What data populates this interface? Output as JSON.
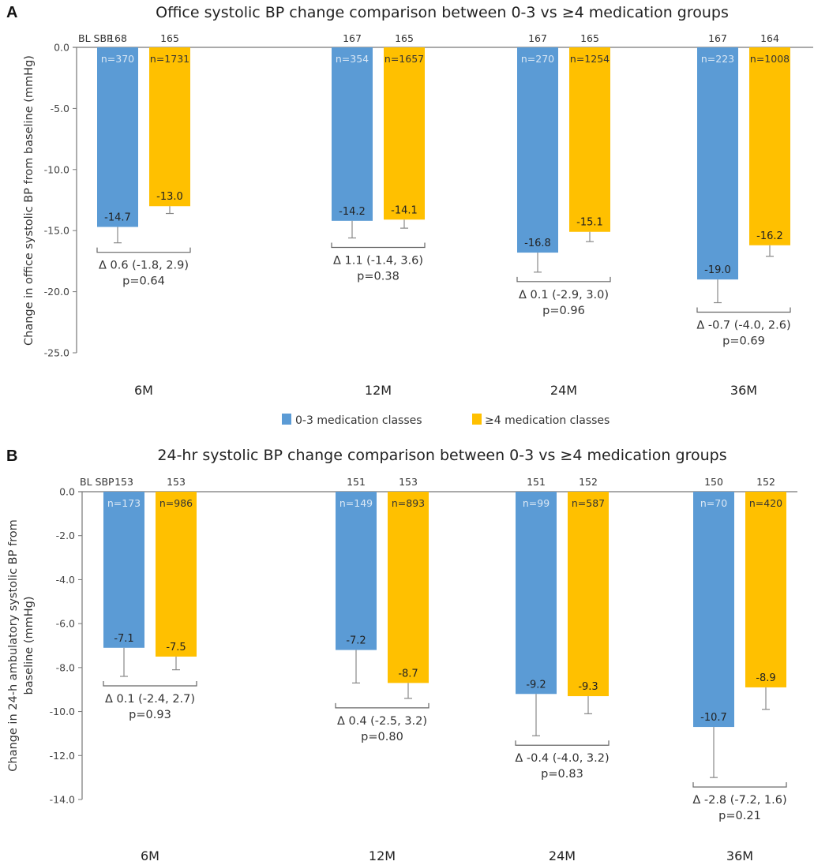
{
  "chart_data": [
    {
      "panel_letter": "A",
      "type": "bar",
      "title": "Office systolic BP change comparison between 0-3 vs ≥4 medication groups",
      "xlabel": "",
      "ylabel": "Change in office systolic BP from baseline (mmHg)",
      "ylim": [
        -25.0,
        0.0
      ],
      "yticks": [
        "0.0",
        "-5.0",
        "-10.0",
        "-15.0",
        "-20.0",
        "-25.0"
      ],
      "ytick_values": [
        0,
        -5,
        -10,
        -15,
        -20,
        -25
      ],
      "categories": [
        "6M",
        "12M",
        "24M",
        "36M"
      ],
      "baseline_label": "BL SBP",
      "series": [
        {
          "name": "0-3 medication classes",
          "color": "#5b9bd5",
          "values": [
            -14.7,
            -14.2,
            -16.8,
            -19.0
          ],
          "value_labels": [
            "-14.7",
            "-14.2",
            "-16.8",
            "-19.0"
          ],
          "error_lower": [
            -16.0,
            -15.6,
            -18.4,
            -20.9
          ],
          "n_labels": [
            "n=370",
            "n=354",
            "n=270",
            "n=223"
          ],
          "baseline_sbp": [
            "168",
            "167",
            "167",
            "167"
          ]
        },
        {
          "name": "≥4 medication classes",
          "color": "#ffc000",
          "values": [
            -13.0,
            -14.1,
            -15.1,
            -16.2
          ],
          "value_labels": [
            "-13.0",
            "-14.1",
            "-15.1",
            "-16.2"
          ],
          "error_lower": [
            -13.6,
            -14.8,
            -15.9,
            -17.1
          ],
          "n_labels": [
            "n=1731",
            "n=1657",
            "n=1254",
            "n=1008"
          ],
          "baseline_sbp": [
            "165",
            "165",
            "165",
            "164"
          ]
        }
      ],
      "comparisons": [
        {
          "delta": "Δ 0.6 (-1.8, 2.9)",
          "p": "p=0.64"
        },
        {
          "delta": "Δ 1.1 (-1.4, 3.6)",
          "p": "p=0.38"
        },
        {
          "delta": "Δ 0.1 (-2.9, 3.0)",
          "p": "p=0.96"
        },
        {
          "delta": "Δ -0.7 (-4.0, 2.6)",
          "p": "p=0.69"
        }
      ],
      "legend": {
        "placement": "bottom-center",
        "entries": [
          "0-3 medication classes",
          "≥4 medication classes"
        ]
      },
      "grid": false
    },
    {
      "panel_letter": "B",
      "type": "bar",
      "title": "24-hr systolic BP change comparison between 0-3 vs ≥4 medication groups",
      "xlabel": "",
      "ylabel": [
        "Change in 24-h ambulatory systolic BP from",
        "baseline (mmHg)"
      ],
      "ylim": [
        -14.0,
        0.0
      ],
      "yticks": [
        "0.0",
        "-2.0",
        "-4.0",
        "-6.0",
        "-8.0",
        "-10.0",
        "-12.0",
        "-14.0"
      ],
      "ytick_values": [
        0,
        -2,
        -4,
        -6,
        -8,
        -10,
        -12,
        -14
      ],
      "categories": [
        "6M",
        "12M",
        "24M",
        "36M"
      ],
      "baseline_label": "BL SBP",
      "series": [
        {
          "name": "0-3 medication classes",
          "color": "#5b9bd5",
          "values": [
            -7.1,
            -7.2,
            -9.2,
            -10.7
          ],
          "value_labels": [
            "-7.1",
            "-7.2",
            "-9.2",
            "-10.7"
          ],
          "error_lower": [
            -8.4,
            -8.7,
            -11.1,
            -13.0
          ],
          "n_labels": [
            "n=173",
            "n=149",
            "n=99",
            "n=70"
          ],
          "baseline_sbp": [
            "153",
            "151",
            "151",
            "150"
          ]
        },
        {
          "name": "≥4 medication classes",
          "color": "#ffc000",
          "values": [
            -7.5,
            -8.7,
            -9.3,
            -8.9
          ],
          "value_labels": [
            "-7.5",
            "-8.7",
            "-9.3",
            "-8.9"
          ],
          "error_lower": [
            -8.1,
            -9.4,
            -10.1,
            -9.9
          ],
          "n_labels": [
            "n=986",
            "n=893",
            "n=587",
            "n=420"
          ],
          "baseline_sbp": [
            "153",
            "153",
            "152",
            "152"
          ]
        }
      ],
      "comparisons": [
        {
          "delta": "Δ 0.1 (-2.4, 2.7)",
          "p": "p=0.93"
        },
        {
          "delta": "Δ 0.4 (-2.5, 3.2)",
          "p": "p=0.80"
        },
        {
          "delta": "Δ -0.4 (-4.0, 3.2)",
          "p": "p=0.83"
        },
        {
          "delta": "Δ -2.8 (-7.2, 1.6)",
          "p": "p=0.21"
        }
      ],
      "grid": false
    }
  ]
}
